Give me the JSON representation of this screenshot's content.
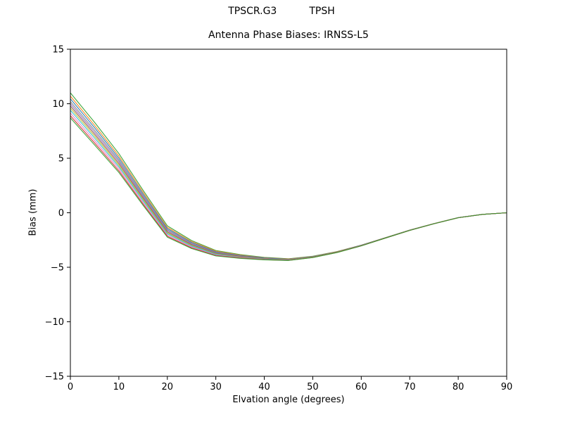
{
  "header": {
    "left": "TPSCR.G3",
    "right": "TPSH"
  },
  "chart_data": {
    "type": "line",
    "title": "Antenna Phase Biases: IRNSS-L5",
    "xlabel": "Elvation angle (degrees)",
    "ylabel": "Bias (mm)",
    "xlim": [
      0,
      90
    ],
    "ylim": [
      -15,
      15
    ],
    "xticks": [
      0,
      10,
      20,
      30,
      40,
      50,
      60,
      70,
      80,
      90
    ],
    "yticks": [
      -15,
      -10,
      -5,
      0,
      5,
      10,
      15
    ],
    "grid": false,
    "legend": "none",
    "background": "#ffffff",
    "axis_color": "#000000",
    "x": [
      0,
      5,
      10,
      15,
      20,
      25,
      30,
      35,
      40,
      45,
      50,
      55,
      60,
      65,
      70,
      75,
      80,
      85,
      90
    ],
    "series": [
      {
        "name": "line-01",
        "color": "#2ca02c",
        "values": [
          11.0,
          8.29,
          5.43,
          2.06,
          -1.2,
          -2.55,
          -3.46,
          -3.83,
          -4.09,
          -4.22,
          -3.99,
          -3.56,
          -2.97,
          -2.28,
          -1.58,
          -0.99,
          -0.44,
          -0.15,
          0.0
        ]
      },
      {
        "name": "line-02",
        "color": "#ff7f0e",
        "values": [
          10.7,
          8.02,
          5.2,
          1.88,
          -1.34,
          -2.64,
          -3.52,
          -3.88,
          -4.12,
          -4.24,
          -4.01,
          -3.57,
          -2.98,
          -2.28,
          -1.59,
          -0.99,
          -0.45,
          -0.15,
          0.0
        ]
      },
      {
        "name": "line-03",
        "color": "#1f77b4",
        "values": [
          10.45,
          7.8,
          5.01,
          1.73,
          -1.45,
          -2.72,
          -3.58,
          -3.92,
          -4.14,
          -4.26,
          -4.02,
          -3.58,
          -2.98,
          -2.29,
          -1.59,
          -0.99,
          -0.45,
          -0.15,
          0.0
        ]
      },
      {
        "name": "line-04",
        "color": "#7f7f7f",
        "values": [
          10.2,
          7.57,
          4.83,
          1.58,
          -1.56,
          -2.8,
          -3.63,
          -3.95,
          -4.17,
          -4.28,
          -4.03,
          -3.59,
          -2.99,
          -2.29,
          -1.6,
          -1.0,
          -0.45,
          -0.15,
          0.0
        ]
      },
      {
        "name": "line-05",
        "color": "#9467bd",
        "values": [
          10.0,
          7.39,
          4.68,
          1.46,
          -1.65,
          -2.87,
          -3.68,
          -3.98,
          -4.19,
          -4.29,
          -4.04,
          -3.6,
          -3.0,
          -2.3,
          -1.6,
          -1.0,
          -0.45,
          -0.15,
          0.0
        ]
      },
      {
        "name": "line-06",
        "color": "#8c564b",
        "values": [
          9.8,
          7.21,
          4.52,
          1.34,
          -1.75,
          -2.93,
          -3.72,
          -4.02,
          -4.21,
          -4.31,
          -4.06,
          -3.6,
          -3.0,
          -2.3,
          -1.6,
          -1.0,
          -0.45,
          -0.15,
          0.0
        ]
      },
      {
        "name": "line-07",
        "color": "#bcbd22",
        "values": [
          9.6,
          7.03,
          4.37,
          1.22,
          -1.84,
          -3.0,
          -3.77,
          -4.05,
          -4.23,
          -4.32,
          -4.07,
          -3.61,
          -3.01,
          -2.31,
          -1.6,
          -1.0,
          -0.45,
          -0.15,
          0.0
        ]
      },
      {
        "name": "line-08",
        "color": "#17becf",
        "values": [
          9.4,
          6.85,
          4.22,
          1.1,
          -1.93,
          -3.06,
          -3.81,
          -4.08,
          -4.25,
          -4.34,
          -4.08,
          -3.62,
          -3.02,
          -2.31,
          -1.61,
          -1.01,
          -0.45,
          -0.15,
          0.0
        ]
      },
      {
        "name": "line-09",
        "color": "#e377c2",
        "values": [
          9.15,
          6.62,
          4.04,
          0.95,
          -2.04,
          -3.14,
          -3.87,
          -4.11,
          -4.28,
          -4.35,
          -4.09,
          -3.63,
          -3.02,
          -2.32,
          -1.61,
          -1.01,
          -0.45,
          -0.15,
          0.0
        ]
      },
      {
        "name": "line-10",
        "color": "#d62728",
        "values": [
          8.9,
          6.4,
          3.85,
          0.8,
          -2.15,
          -3.22,
          -3.92,
          -4.15,
          -4.3,
          -4.37,
          -4.1,
          -3.64,
          -3.03,
          -2.32,
          -1.62,
          -1.01,
          -0.46,
          -0.15,
          0.0
        ]
      },
      {
        "name": "line-11",
        "color": "#2ca02c",
        "values": [
          8.7,
          6.22,
          3.7,
          0.68,
          -2.24,
          -3.28,
          -3.96,
          -4.18,
          -4.32,
          -4.38,
          -4.11,
          -3.65,
          -3.04,
          -2.32,
          -1.62,
          -1.01,
          -0.46,
          -0.15,
          0.0
        ]
      }
    ]
  }
}
